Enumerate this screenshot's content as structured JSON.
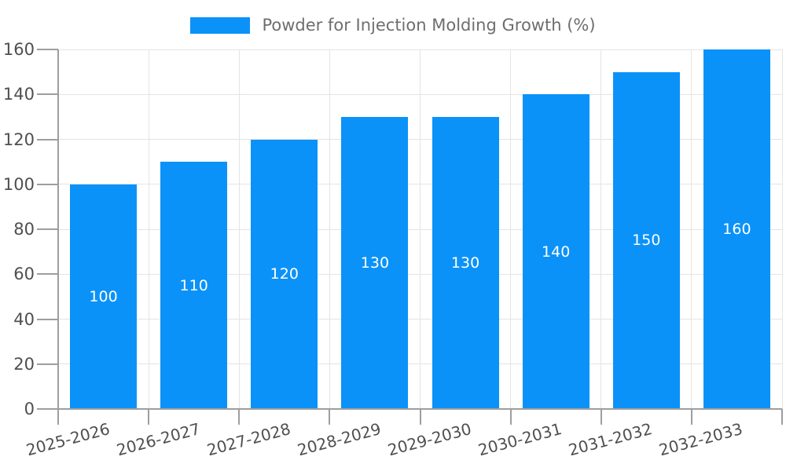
{
  "chart_data": {
    "type": "bar",
    "title": "Powder for Injection Molding Growth (%)",
    "categories": [
      "2025-2026",
      "2026-2027",
      "2027-2028",
      "2028-2029",
      "2029-2030",
      "2030-2031",
      "2031-2032",
      "2032-2033"
    ],
    "series": [
      {
        "name": "Powder for Injection Molding Growth (%)",
        "values": [
          100,
          110,
          120,
          130,
          130,
          140,
          150,
          160
        ]
      }
    ],
    "xlabel": "",
    "ylabel": "",
    "ylim": [
      0,
      160
    ],
    "yticks": [
      0,
      20,
      40,
      60,
      80,
      100,
      120,
      140,
      160
    ],
    "grid": true,
    "legend_position": "top-center",
    "bar_value_labels": [
      100,
      110,
      120,
      130,
      130,
      140,
      150,
      160
    ]
  },
  "legend": {
    "label": "Powder for Injection Molding Growth (%)"
  },
  "colors": {
    "bar": "#0b92f8",
    "grid": "#e4e4e4",
    "axis": "#9e9e9e",
    "tick_text": "#4f4f4f",
    "legend_text": "#6e6e6e",
    "value_label": "#ffffff",
    "background": "#ffffff"
  }
}
